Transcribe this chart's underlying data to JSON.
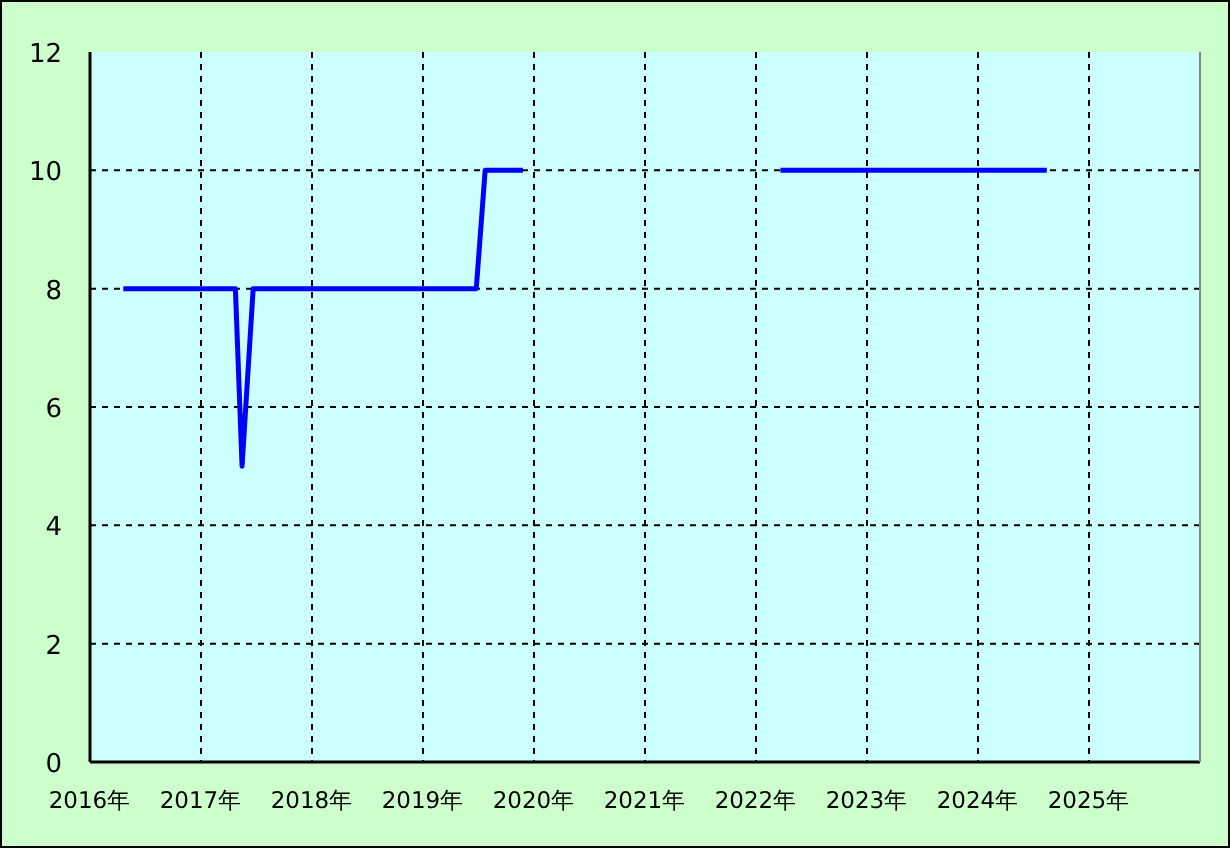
{
  "chart_data": {
    "type": "line",
    "x": [
      2016.3,
      2017.31,
      2017.37,
      2017.47,
      2019.48,
      2019.56,
      2019.9
    ],
    "series": [
      {
        "color": "#0000ff",
        "values": [
          8,
          8,
          5,
          8,
          8,
          10,
          10
        ]
      },
      {
        "color": "#0000ff",
        "x": [
          2022.22,
          2024.62
        ],
        "values": [
          10,
          10
        ]
      }
    ],
    "xlim": [
      2016,
      2026
    ],
    "xticks": [
      {
        "value": 2016,
        "label": "2016年"
      },
      {
        "value": 2017,
        "label": "2017年"
      },
      {
        "value": 2018,
        "label": "2018年"
      },
      {
        "value": 2019,
        "label": "2019年"
      },
      {
        "value": 2020,
        "label": "2020年"
      },
      {
        "value": 2021,
        "label": "2021年"
      },
      {
        "value": 2022,
        "label": "2022年"
      },
      {
        "value": 2023,
        "label": "2023年"
      },
      {
        "value": 2024,
        "label": "2024年"
      },
      {
        "value": 2025,
        "label": "2025年"
      }
    ],
    "ylim": [
      0,
      12
    ],
    "yticks": [
      0,
      2,
      4,
      6,
      8,
      10,
      12
    ],
    "grid": true,
    "line_style": "solid"
  }
}
